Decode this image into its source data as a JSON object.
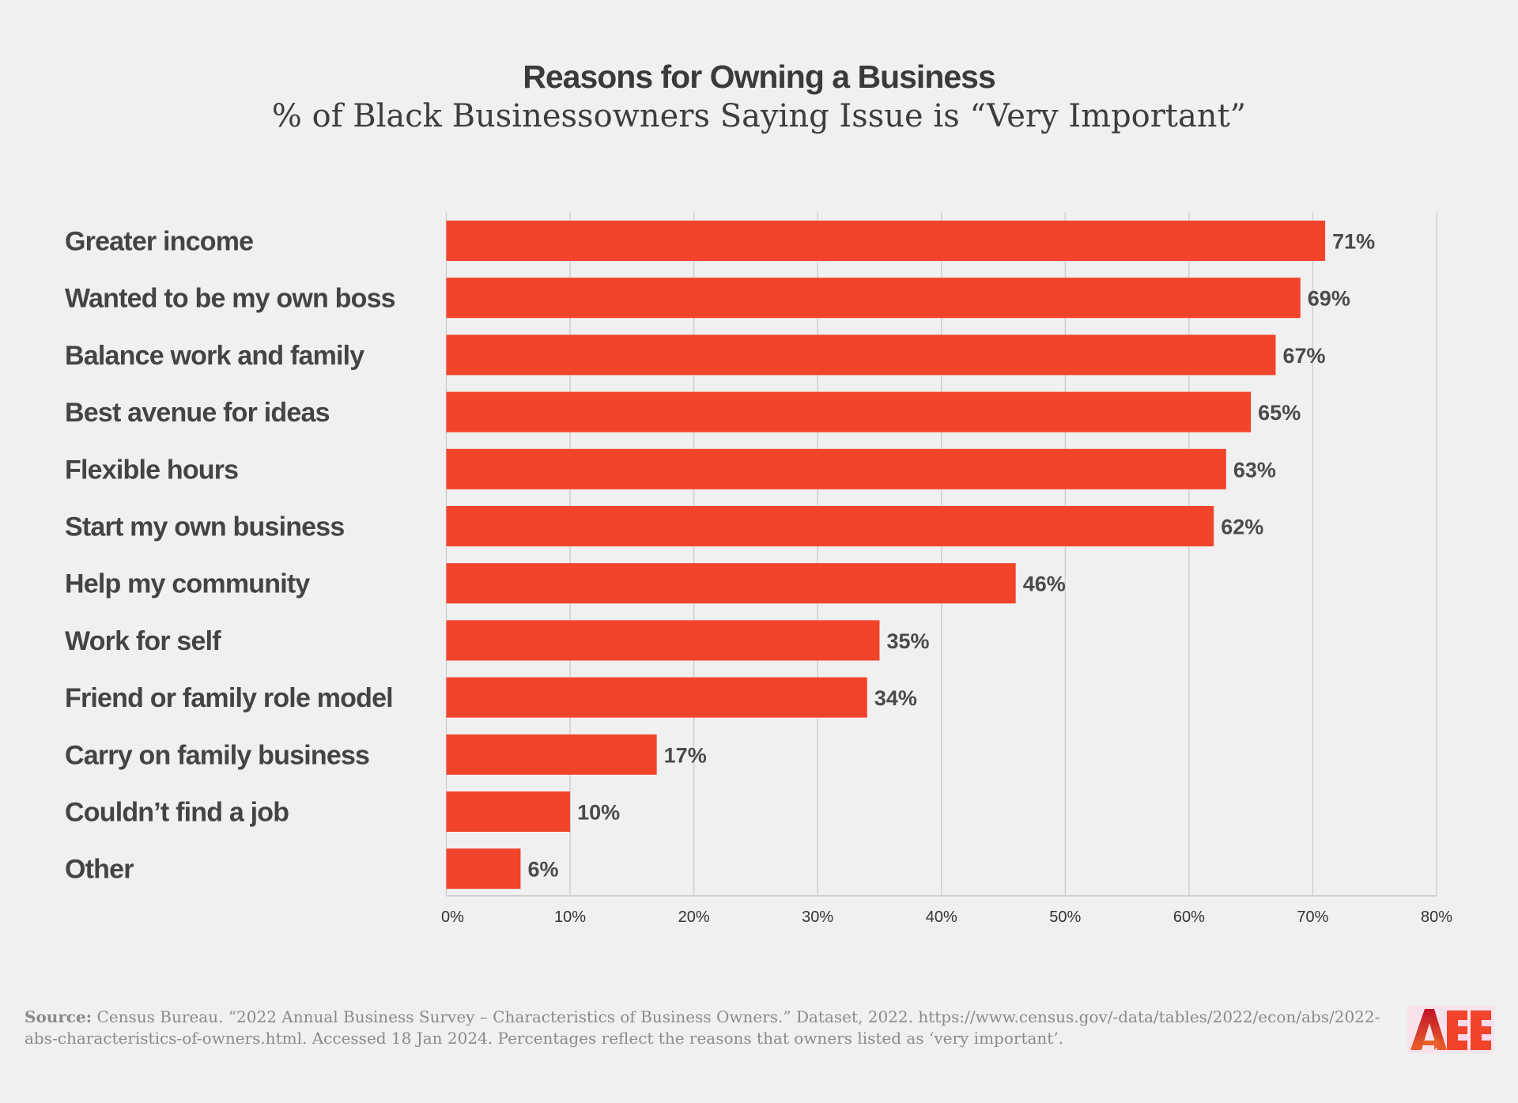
{
  "chart_data": {
    "type": "bar",
    "orientation": "horizontal",
    "title": "Reasons for Owning a Business",
    "subtitle": "% of Black Businessowners Saying Issue is “Very Important”",
    "categories": [
      "Greater income",
      "Wanted to be my own boss",
      "Balance work and family",
      "Best avenue for ideas",
      "Flexible hours",
      "Start my own business",
      "Help my community",
      "Work for self",
      "Friend or family role model",
      "Carry on family business",
      "Couldn’t find a job",
      "Other"
    ],
    "values": [
      71,
      69,
      67,
      65,
      63,
      62,
      46,
      35,
      34,
      17,
      10,
      6
    ],
    "value_labels": [
      "71%",
      "69%",
      "67%",
      "65%",
      "63%",
      "62%",
      "46%",
      "35%",
      "34%",
      "17%",
      "10%",
      "6%"
    ],
    "xlim": [
      0,
      80
    ],
    "xticks": [
      0,
      10,
      20,
      30,
      40,
      50,
      60,
      70,
      80
    ],
    "xtick_labels": [
      "0%",
      "10%",
      "20%",
      "30%",
      "40%",
      "50%",
      "60%",
      "70%",
      "80%"
    ],
    "grid": "vertical",
    "bar_color": "#f2432b",
    "xlabel": "",
    "ylabel": ""
  },
  "footer": {
    "source_label": "Source:",
    "source_text": " Census Bureau. “2022 Annual Business Survey – Characteristics of Business Owners.” Dataset, 2022. https://www.census.gov/-data/tables/2022/econ/abs/2022-abs-characteristics-of-owners.html. Accessed 18 Jan 2024. Percentages reflect the reasons that owners listed as ‘very important’."
  },
  "logo": {
    "text": "AEE"
  }
}
